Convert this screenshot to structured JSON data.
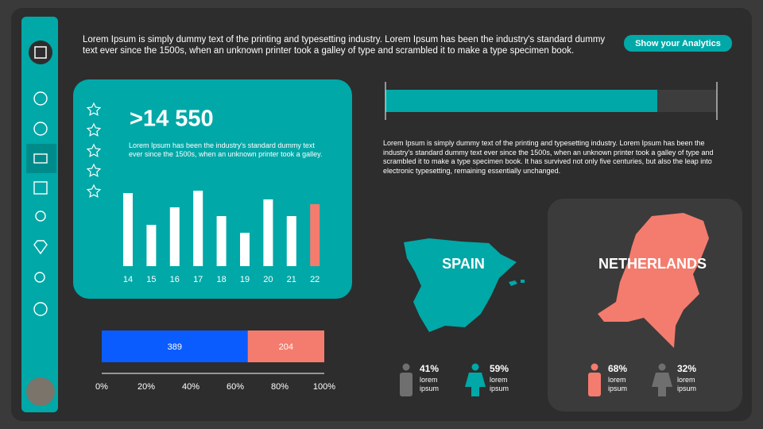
{
  "header": {
    "text": "Lorem Ipsum is simply dummy text of the printing and typesetting industry. Lorem Ipsum has been the industry's standard dummy text ever since the 1500s, when an unknown printer took a galley of type and scrambled it to make a type specimen book.",
    "button": "Show your Analytics"
  },
  "card": {
    "headline": ">14 550",
    "text": "Lorem Ipsum has been the industry's standard dummy text ever since the 1500s, when an unknown printer took a galley."
  },
  "paragraph": "Lorem Ipsum is simply dummy text of the printing and typesetting industry. Lorem Ipsum has been the industry's standard dummy text ever since the 1500s, when an unknown printer took a galley of type and scrambled it to make a type specimen book. It has survived not only five centuries, but also the leap into electronic typesetting, remaining essentially unchanged.",
  "regions": [
    {
      "name": "SPAIN",
      "stats": [
        {
          "percent": "41%",
          "text": "lorem ipsum"
        },
        {
          "percent": "59%",
          "text": "lorem ipsum"
        }
      ]
    },
    {
      "name": "NETHERLANDS",
      "stats": [
        {
          "percent": "68%",
          "text": "lorem ipsum"
        },
        {
          "percent": "32%",
          "text": "lorem ipsum"
        }
      ]
    }
  ],
  "chart_data": [
    {
      "type": "bar",
      "categories": [
        "14",
        "15",
        "16",
        "17",
        "18",
        "19",
        "20",
        "21",
        "22"
      ],
      "values": [
        92,
        52,
        74,
        95,
        63,
        42,
        84,
        63,
        78
      ],
      "colors": [
        "#ffffff",
        "#ffffff",
        "#ffffff",
        "#ffffff",
        "#ffffff",
        "#ffffff",
        "#ffffff",
        "#ffffff",
        "#f47c6e"
      ]
    },
    {
      "type": "progress",
      "value": 82,
      "xlim": [
        0,
        100
      ],
      "color": "#00a8a8",
      "track_color": "#3d3d3d"
    },
    {
      "type": "stacked_bar",
      "xlim": [
        0,
        100
      ],
      "xticks": [
        {
          "value": 0,
          "label": "0%"
        },
        {
          "value": 20,
          "label": "20%"
        },
        {
          "value": 40,
          "label": "40%"
        },
        {
          "value": 60,
          "label": "60%"
        },
        {
          "value": 80,
          "label": "80%"
        },
        {
          "value": 100,
          "label": "100%"
        }
      ],
      "series": [
        {
          "color": "#0a5cff",
          "values": [
            389
          ]
        },
        {
          "color": "#f47c6e",
          "values": [
            204
          ]
        }
      ]
    }
  ]
}
